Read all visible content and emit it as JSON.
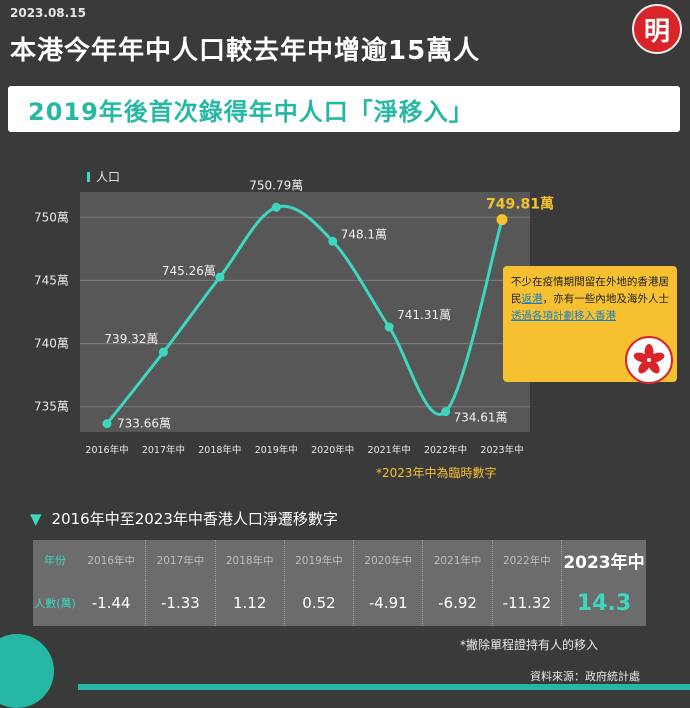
{
  "header": {
    "date": "2023.08.15",
    "logo_char": "明",
    "title": "本港今年年中人口較去年中增逾15萬人",
    "subtitle": "2019年後首次錄得年中人口「淨移入」"
  },
  "chart_data": {
    "type": "line",
    "title": "",
    "ylabel": "人口",
    "xlabel": "",
    "x": [
      "2016年中",
      "2017年中",
      "2018年中",
      "2019年中",
      "2020年中",
      "2021年中",
      "2022年中",
      "2023年中"
    ],
    "yticks": [
      "735萬",
      "740萬",
      "745萬",
      "750萬"
    ],
    "series": [
      {
        "values": [
          733.66,
          739.32,
          745.26,
          750.79,
          748.1,
          741.31,
          734.61,
          749.81
        ],
        "labels": [
          "733.66萬",
          "739.32萬",
          "745.26萬",
          "750.79萬",
          "748.1萬",
          "741.31萬",
          "734.61萬",
          "749.81萬"
        ]
      }
    ],
    "ylim": [
      733,
      752
    ],
    "grid": true,
    "colors": {
      "line": "#3dd6bf",
      "highlight": "#f6c030"
    }
  },
  "chart_note": {
    "part1": "不少在疫情期間留在外地的香港居民",
    "hl1": "返港",
    "part2": "，亦有一些內地及海外人士",
    "hl2": "透過各項計劃移入香港"
  },
  "footnote_provisional": "*2023年中為臨時數字",
  "table": {
    "title": "2016年中至2023年中香港人口淨遷移數字",
    "row_header_label": "年份",
    "row_value_label": "人數(萬)",
    "years": [
      "2016年中",
      "2017年中",
      "2018年中",
      "2019年中",
      "2020年中",
      "2021年中",
      "2022年中",
      "2023年中"
    ],
    "values": [
      "-1.44",
      "-1.33",
      "1.12",
      "0.52",
      "-4.91",
      "-6.92",
      "-11.32",
      "14.3"
    ]
  },
  "footnote_exclude": "*撇除單程證持有人的移入",
  "source": "資料來源：政府統計處"
}
